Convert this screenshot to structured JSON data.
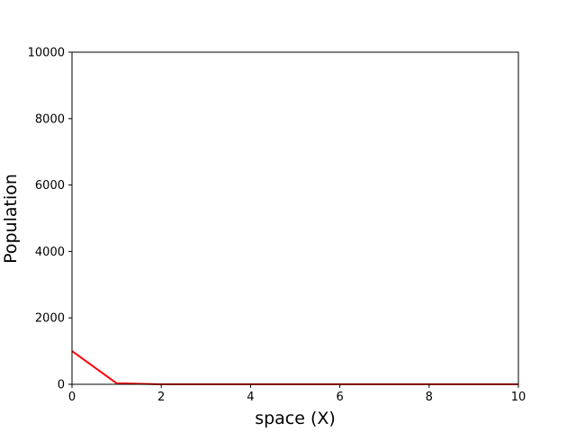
{
  "chart_data": {
    "type": "line",
    "title": "",
    "xlabel": "space (X)",
    "ylabel": "Population",
    "xlim": [
      0,
      10
    ],
    "ylim": [
      0,
      10000
    ],
    "xticks": [
      0,
      2,
      4,
      6,
      8,
      10
    ],
    "yticks": [
      0,
      2000,
      4000,
      6000,
      8000,
      10000
    ],
    "grid": false,
    "series": [
      {
        "color": "#ff0000",
        "x": [
          0,
          1,
          2,
          3,
          4,
          5,
          6,
          7,
          8,
          9,
          10
        ],
        "y": [
          1000,
          30,
          1,
          0,
          0,
          0,
          0,
          0,
          0,
          0,
          0
        ]
      }
    ]
  }
}
